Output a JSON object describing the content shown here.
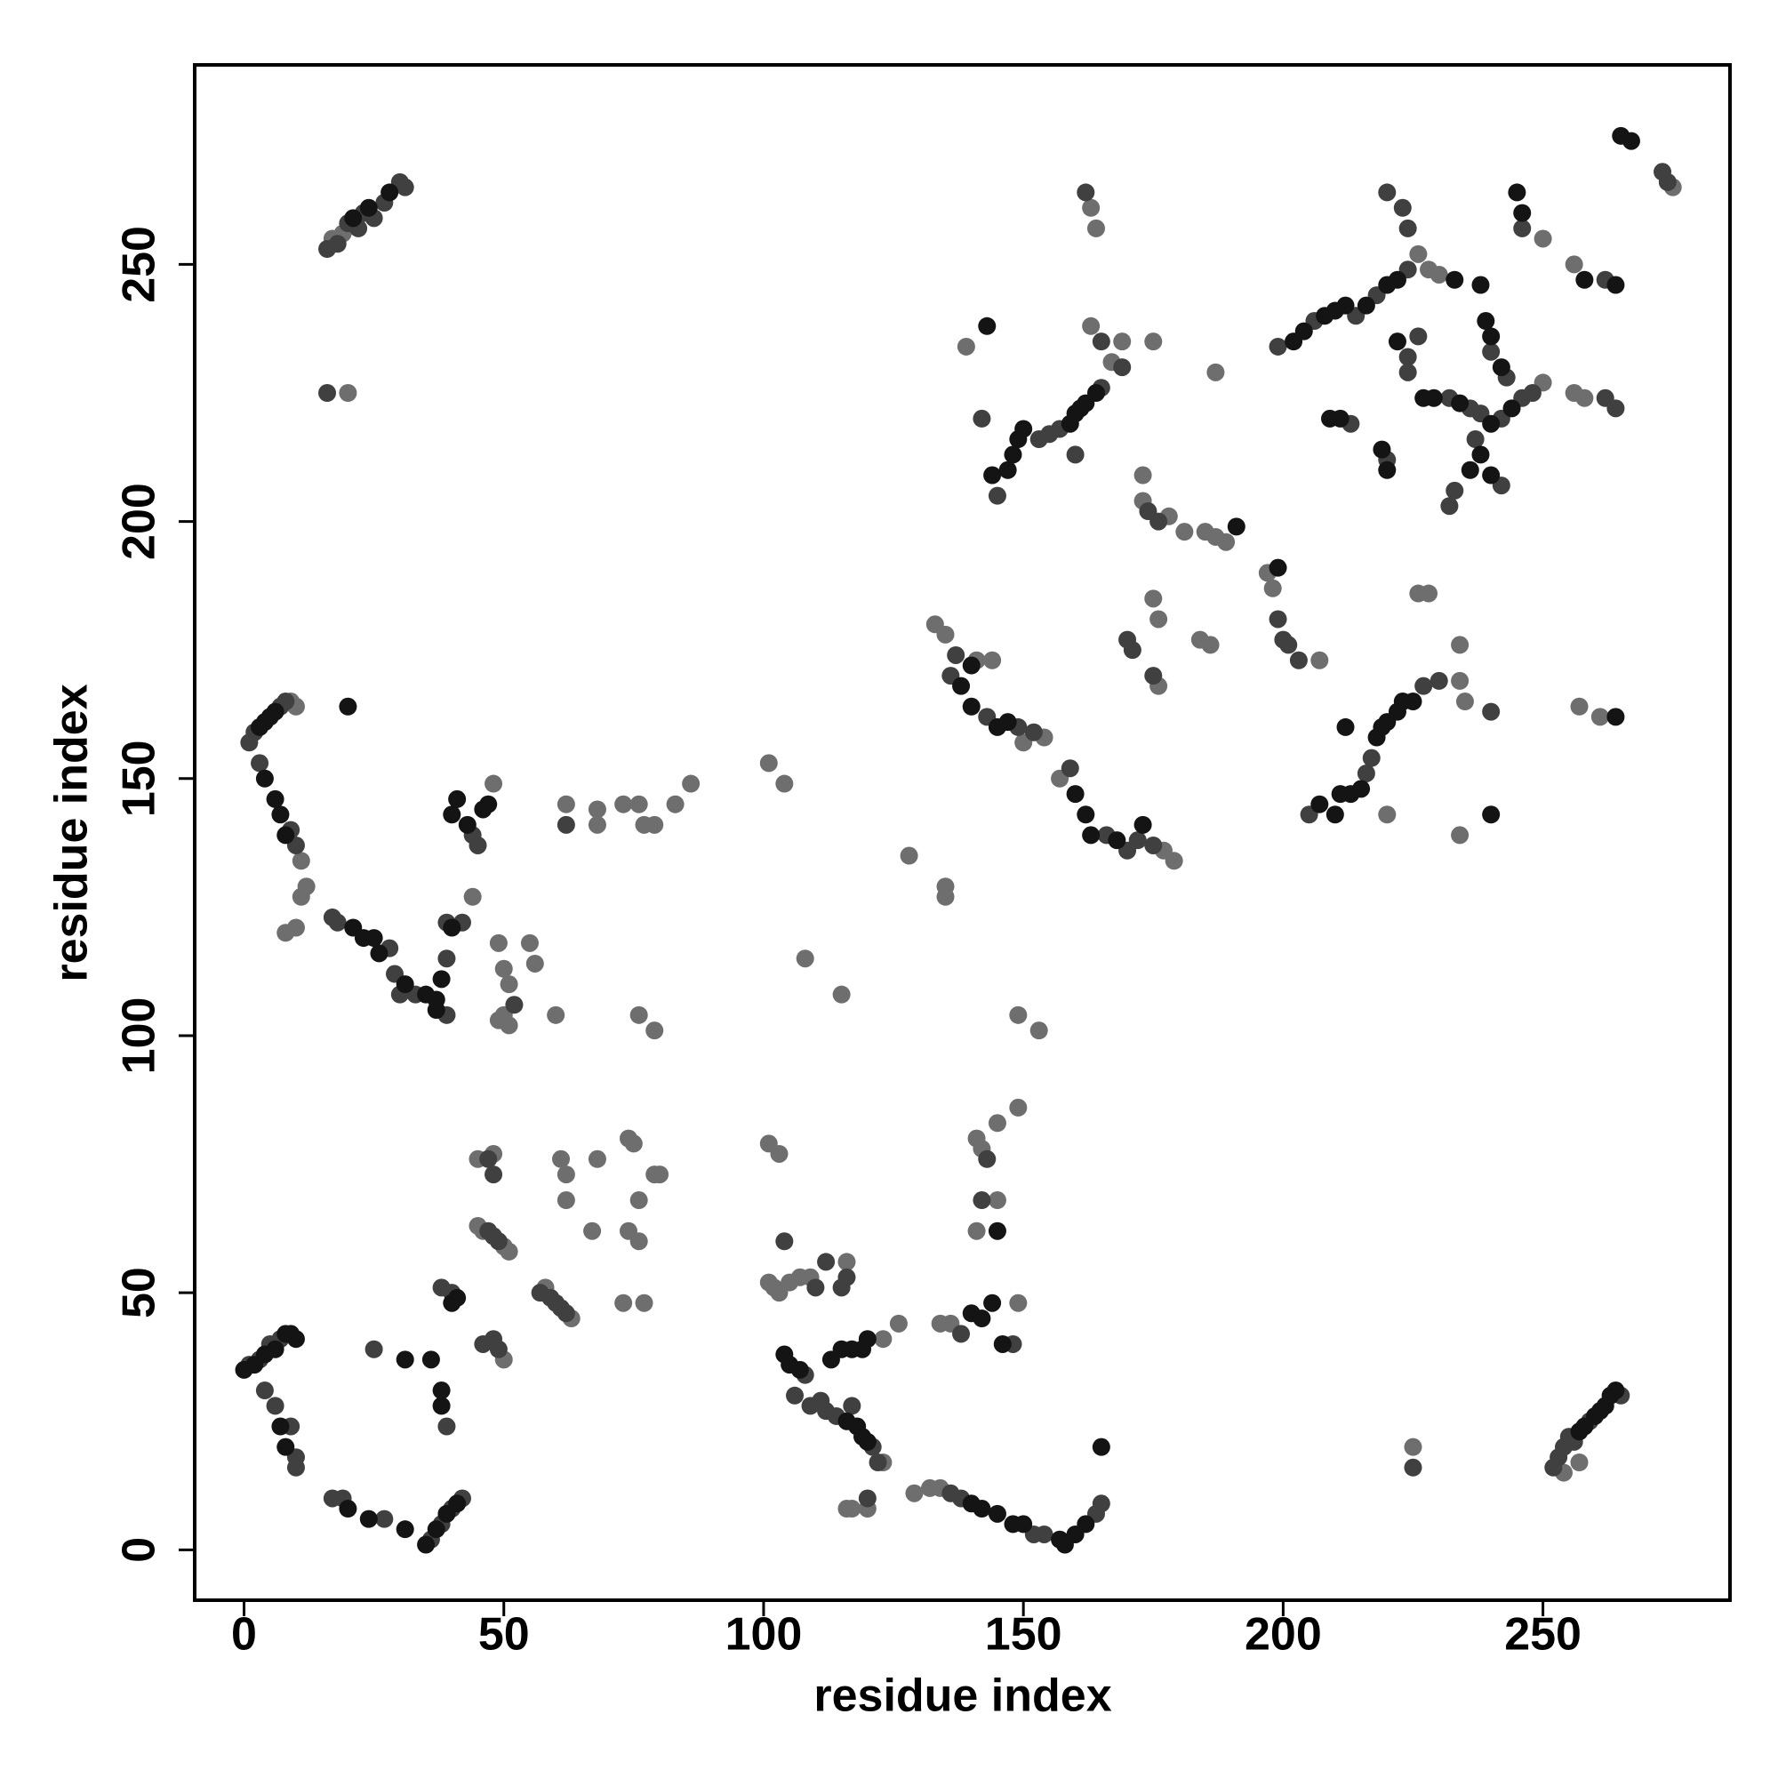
{
  "chart_data": {
    "type": "scatter",
    "x_label": "residue index",
    "y_label": "residue index",
    "xlim": [
      -9.5,
      286
    ],
    "ylim": [
      -9.8,
      288.8
    ],
    "xticks": [
      0,
      50,
      100,
      150,
      200,
      250
    ],
    "yticks": [
      0,
      50,
      100,
      150,
      200,
      250
    ],
    "grid": false,
    "series": [
      {
        "color": "#6e6e6e",
        "x": [
          11,
          12,
          11,
          8,
          10,
          9,
          10,
          17,
          19,
          20,
          50,
          51,
          45,
          46,
          48,
          45,
          58,
          63,
          62,
          61,
          62,
          67,
          68,
          73,
          74,
          75,
          74,
          76,
          76,
          77,
          79,
          80,
          50,
          101,
          103,
          101,
          102,
          103,
          105,
          107,
          109,
          116,
          116,
          117,
          120,
          123,
          123,
          126,
          129,
          132,
          134,
          134,
          136,
          149,
          141,
          145,
          145,
          141,
          142,
          149,
          44,
          48,
          49,
          50,
          51,
          50,
          49,
          51,
          55,
          56,
          60,
          62,
          68,
          68,
          73,
          76,
          77,
          79,
          83,
          86,
          76,
          79,
          101,
          104,
          108,
          115,
          149,
          153,
          133,
          135,
          141,
          144,
          150,
          154,
          157,
          177,
          179,
          128,
          135,
          135,
          139,
          163,
          167,
          169,
          175,
          163,
          164,
          173,
          173,
          178,
          181,
          185,
          187,
          189,
          187,
          175,
          176,
          176,
          184,
          186,
          197,
          198,
          207,
          226,
          228,
          230,
          250,
          250,
          256,
          256,
          258,
          275,
          234,
          235,
          234,
          226,
          228,
          234,
          257,
          261,
          254,
          257,
          225,
          220
        ],
        "values": [
          134,
          129,
          127,
          120,
          121,
          165,
          164,
          255,
          256,
          225,
          59,
          58,
          63,
          62,
          77,
          76,
          51,
          45,
          73,
          76,
          68,
          62,
          76,
          48,
          62,
          79,
          80,
          68,
          60,
          48,
          73,
          73,
          37,
          79,
          77,
          52,
          51,
          50,
          52,
          53,
          53,
          56,
          8,
          8,
          8,
          17,
          41,
          44,
          11,
          12,
          12,
          44,
          44,
          48,
          80,
          68,
          83,
          62,
          78,
          86,
          127,
          149,
          118,
          113,
          110,
          104,
          103,
          102,
          118,
          114,
          104,
          145,
          144,
          141,
          145,
          145,
          141,
          141,
          145,
          149,
          104,
          101,
          153,
          149,
          115,
          108,
          104,
          101,
          180,
          178,
          173,
          173,
          157,
          158,
          150,
          136,
          134,
          135,
          127,
          129,
          234,
          238,
          231,
          235,
          235,
          261,
          257,
          209,
          204,
          201,
          198,
          198,
          197,
          196,
          229,
          185,
          181,
          168,
          177,
          176,
          190,
          187,
          173,
          252,
          249,
          248,
          227,
          255,
          250,
          225,
          224,
          265,
          169,
          165,
          176,
          186,
          186,
          139,
          164,
          162,
          15,
          17,
          20,
          143
        ]
      },
      {
        "color": "#404040",
        "x": [
          1,
          3,
          5,
          7,
          4,
          6,
          9,
          10,
          10,
          17,
          19,
          27,
          36,
          38,
          40,
          42,
          39,
          25,
          38,
          40,
          46,
          48,
          49,
          47,
          48,
          49,
          57,
          59,
          60,
          61,
          62,
          106,
          108,
          109,
          111,
          112,
          114,
          117,
          121,
          122,
          110,
          115,
          112,
          120,
          136,
          138,
          152,
          154,
          164,
          165,
          138,
          148,
          142,
          143,
          16,
          18,
          20,
          22,
          23,
          25,
          27,
          30,
          31,
          16,
          1,
          2,
          7,
          8,
          3,
          9,
          10,
          17,
          18,
          28,
          29,
          30,
          33,
          39,
          39,
          39,
          42,
          44,
          45,
          47,
          48,
          52,
          62,
          136,
          137,
          143,
          149,
          152,
          159,
          166,
          170,
          172,
          175,
          142,
          145,
          153,
          155,
          157,
          160,
          162,
          165,
          165,
          169,
          174,
          176,
          170,
          171,
          175,
          199,
          200,
          201,
          203,
          199,
          206,
          214,
          218,
          224,
          213,
          220,
          220,
          223,
          224,
          224,
          224,
          226,
          232,
          236,
          238,
          242,
          246,
          248,
          240,
          243,
          237,
          233,
          232,
          242,
          246,
          262,
          262,
          264,
          273,
          274,
          205,
          216,
          217,
          227,
          230,
          240,
          252,
          253,
          254,
          255,
          256,
          259,
          265,
          225,
          104,
          116
        ],
        "values": [
          36,
          37,
          40,
          41,
          31,
          28,
          24,
          18,
          16,
          10,
          10,
          6,
          2,
          5,
          8,
          10,
          24,
          39,
          51,
          50,
          40,
          41,
          39,
          62,
          61,
          60,
          50,
          49,
          48,
          47,
          46,
          30,
          34,
          28,
          29,
          27,
          26,
          28,
          20,
          17,
          51,
          51,
          56,
          10,
          11,
          10,
          3,
          3,
          7,
          9,
          42,
          40,
          68,
          76,
          253,
          254,
          258,
          257,
          260,
          259,
          262,
          266,
          265,
          225,
          157,
          159,
          164,
          165,
          153,
          140,
          137,
          123,
          122,
          117,
          112,
          108,
          108,
          104,
          115,
          122,
          122,
          139,
          137,
          76,
          73,
          106,
          141,
          170,
          174,
          162,
          160,
          159,
          152,
          139,
          136,
          138,
          137,
          220,
          205,
          216,
          217,
          218,
          213,
          264,
          226,
          235,
          230,
          202,
          200,
          177,
          175,
          170,
          181,
          177,
          176,
          173,
          234,
          239,
          240,
          244,
          249,
          219,
          212,
          264,
          261,
          257,
          232,
          229,
          236,
          224,
          222,
          221,
          220,
          224,
          225,
          233,
          228,
          216,
          206,
          203,
          207,
          257,
          247,
          224,
          222,
          268,
          266,
          143,
          151,
          154,
          168,
          169,
          163,
          16,
          18,
          20,
          22,
          21,
          25,
          30,
          16,
          60,
          53
        ]
      },
      {
        "color": "#141414",
        "x": [
          0,
          2,
          4,
          6,
          8,
          9,
          10,
          7,
          8,
          20,
          24,
          31,
          35,
          37,
          39,
          41,
          38,
          38,
          36,
          31,
          40,
          41,
          104,
          105,
          107,
          113,
          116,
          118,
          119,
          120,
          115,
          117,
          119,
          120,
          140,
          142,
          145,
          148,
          150,
          157,
          158,
          160,
          162,
          165,
          140,
          142,
          144,
          146,
          145,
          28,
          24,
          21,
          3,
          4,
          5,
          6,
          4,
          6,
          7,
          8,
          21,
          23,
          25,
          26,
          31,
          35,
          37,
          37,
          38,
          40,
          40,
          41,
          43,
          46,
          47,
          20,
          140,
          138,
          140,
          145,
          147,
          160,
          162,
          163,
          168,
          173,
          143,
          144,
          147,
          148,
          149,
          150,
          159,
          160,
          161,
          162,
          164,
          191,
          199,
          202,
          204,
          208,
          210,
          212,
          216,
          220,
          222,
          233,
          238,
          209,
          211,
          219,
          220,
          245,
          246,
          222,
          227,
          229,
          234,
          240,
          244,
          239,
          240,
          242,
          238,
          236,
          240,
          258,
          264,
          265,
          267,
          207,
          210,
          211,
          213,
          212,
          215,
          218,
          219,
          220,
          222,
          223,
          225,
          240,
          264,
          257,
          258,
          260,
          261,
          262,
          263,
          264
        ],
        "values": [
          35,
          36,
          38,
          39,
          42,
          42,
          41,
          24,
          20,
          8,
          6,
          4,
          1,
          4,
          7,
          9,
          28,
          31,
          37,
          37,
          48,
          49,
          38,
          36,
          35,
          37,
          25,
          24,
          22,
          21,
          39,
          39,
          39,
          41,
          9,
          8,
          7,
          5,
          5,
          2,
          1,
          3,
          5,
          20,
          46,
          45,
          48,
          40,
          62,
          264,
          261,
          259,
          160,
          161,
          162,
          163,
          150,
          146,
          143,
          139,
          121,
          119,
          119,
          116,
          110,
          108,
          107,
          105,
          111,
          121,
          143,
          146,
          141,
          144,
          145,
          164,
          172,
          168,
          164,
          160,
          161,
          147,
          143,
          139,
          138,
          141,
          238,
          209,
          210,
          213,
          216,
          218,
          219,
          221,
          222,
          223,
          225,
          199,
          191,
          235,
          237,
          240,
          241,
          242,
          242,
          246,
          247,
          247,
          246,
          220,
          220,
          214,
          210,
          264,
          260,
          235,
          224,
          224,
          223,
          219,
          222,
          239,
          236,
          230,
          213,
          210,
          209,
          247,
          246,
          275,
          274,
          145,
          143,
          147,
          147,
          160,
          148,
          158,
          160,
          161,
          163,
          165,
          165,
          143,
          162,
          23,
          24,
          26,
          27,
          28,
          30,
          31
        ]
      }
    ]
  }
}
